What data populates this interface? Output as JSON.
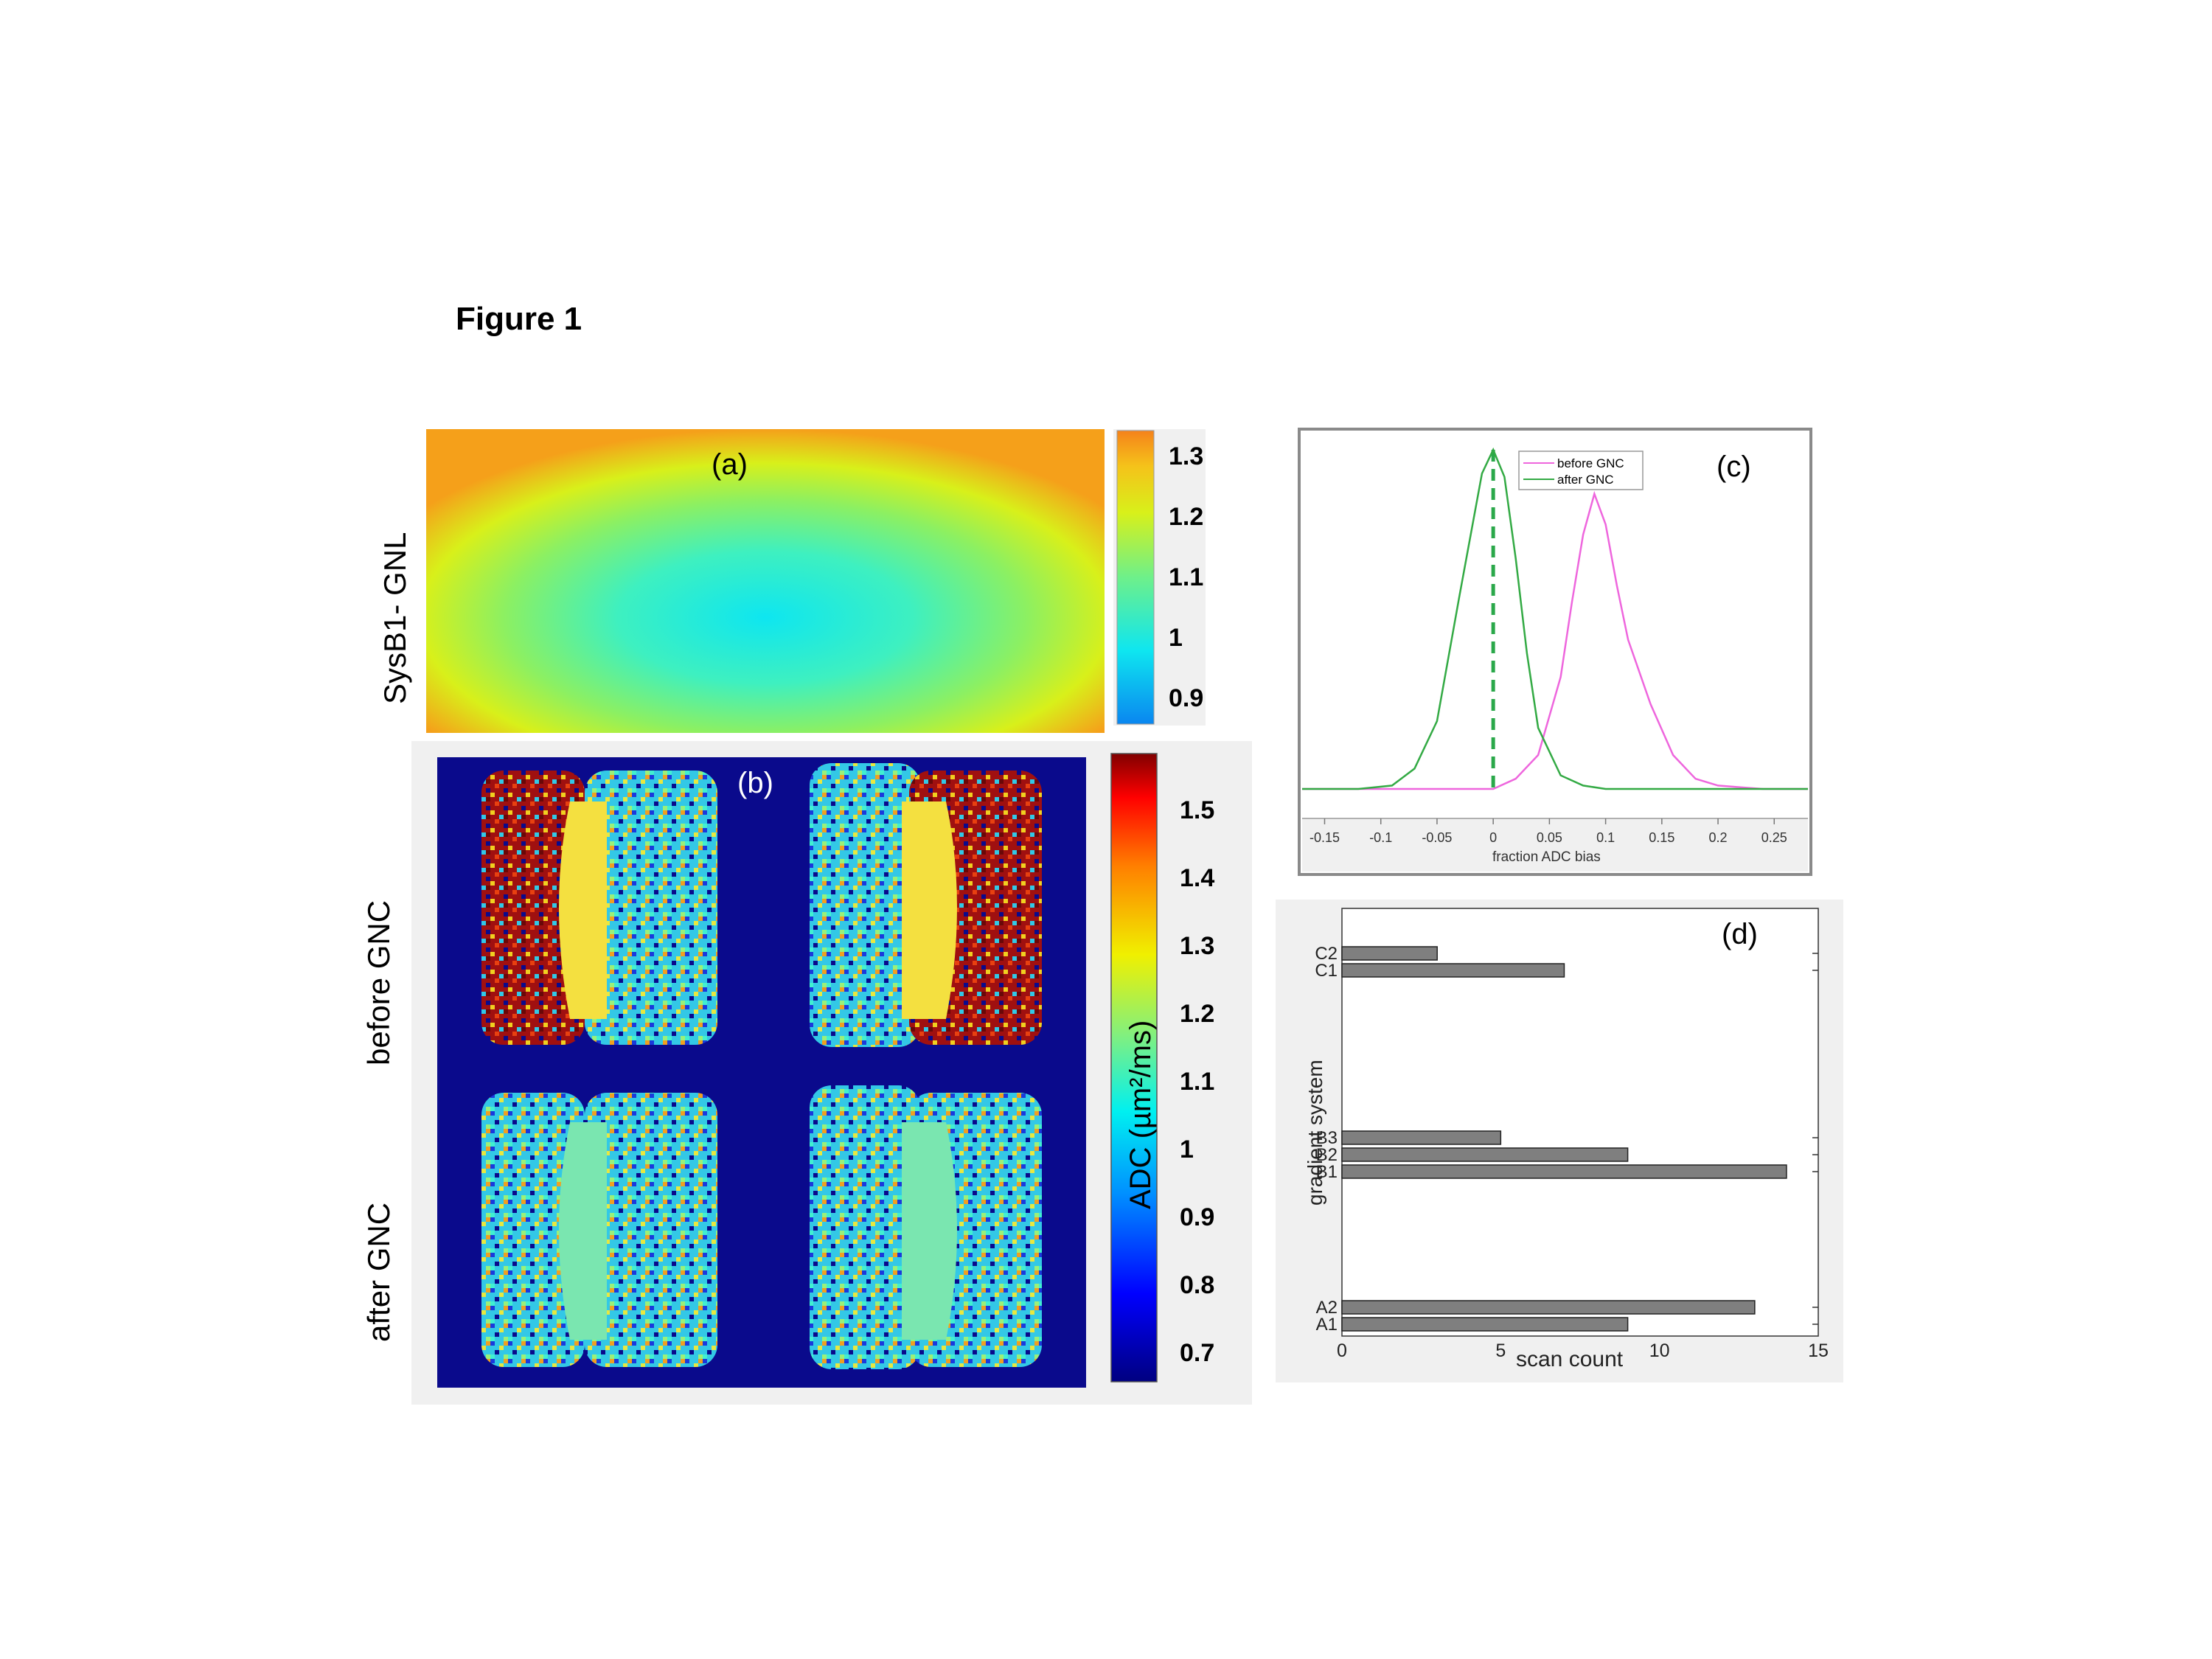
{
  "figure_title": "Figure 1",
  "panel_a": {
    "label": "(a)",
    "ylabel": "SysB1- GNL",
    "colorbar_ticks": [
      "1.3",
      "1.2",
      "1.1",
      "1",
      "0.9"
    ],
    "colormap_colors": [
      "#0a86f0",
      "#0ee6f0",
      "#6ef08a",
      "#d8f01a",
      "#f5c21a",
      "#f5821a"
    ]
  },
  "panel_b": {
    "label": "(b)",
    "row_labels": [
      "before GNC",
      "after GNC"
    ],
    "colorbar_label": "ADC (µm²/ms)",
    "colorbar_ticks": [
      "1.5",
      "1.4",
      "1.3",
      "1.2",
      "1.1",
      "1",
      "0.9",
      "0.8",
      "0.7"
    ],
    "background_color": "#0a0a8c"
  },
  "chart_data": [
    {
      "type": "line",
      "panel_label": "(c)",
      "xlabel": "fraction ADC bias",
      "x_ticks": [
        "-0.15",
        "-0.1",
        "-0.05",
        "0",
        "0.05",
        "0.1",
        "0.15",
        "0.2",
        "0.25"
      ],
      "xlim": [
        -0.17,
        0.28
      ],
      "grid": false,
      "legend_position": "top",
      "series": [
        {
          "name": "before GNC",
          "color": "#ee66dd",
          "x": [
            -0.17,
            0.0,
            0.02,
            0.04,
            0.06,
            0.07,
            0.08,
            0.09,
            0.1,
            0.11,
            0.12,
            0.14,
            0.16,
            0.18,
            0.2,
            0.22,
            0.24,
            0.28
          ],
          "y": [
            0.0,
            0.0,
            0.03,
            0.1,
            0.33,
            0.55,
            0.75,
            0.87,
            0.78,
            0.6,
            0.44,
            0.25,
            0.1,
            0.03,
            0.01,
            0.005,
            0.0,
            0.0
          ]
        },
        {
          "name": "after GNC",
          "color": "#33aa44",
          "x": [
            -0.17,
            -0.12,
            -0.09,
            -0.07,
            -0.05,
            -0.03,
            -0.02,
            -0.01,
            0.0,
            0.01,
            0.02,
            0.03,
            0.04,
            0.06,
            0.08,
            0.1,
            0.28
          ],
          "y": [
            0.0,
            0.0,
            0.01,
            0.06,
            0.2,
            0.57,
            0.75,
            0.93,
            1.0,
            0.92,
            0.68,
            0.4,
            0.18,
            0.04,
            0.01,
            0.0,
            0.0
          ]
        }
      ],
      "annotation": {
        "type": "vertical-dashed-line",
        "x": 0,
        "color": "#2aa84a"
      }
    },
    {
      "type": "bar",
      "orientation": "horizontal",
      "panel_label": "(d)",
      "xlabel": "scan count",
      "ylabel": "gradient system",
      "x_ticks": [
        "0",
        "5",
        "10",
        "15"
      ],
      "xlim": [
        0,
        15
      ],
      "categories": [
        "C2",
        "C1",
        "B3",
        "B2",
        "B1",
        "A2",
        "A1"
      ],
      "values": [
        3,
        7,
        5,
        9,
        14,
        13,
        9
      ],
      "bar_color": "#7f7f7f"
    }
  ]
}
